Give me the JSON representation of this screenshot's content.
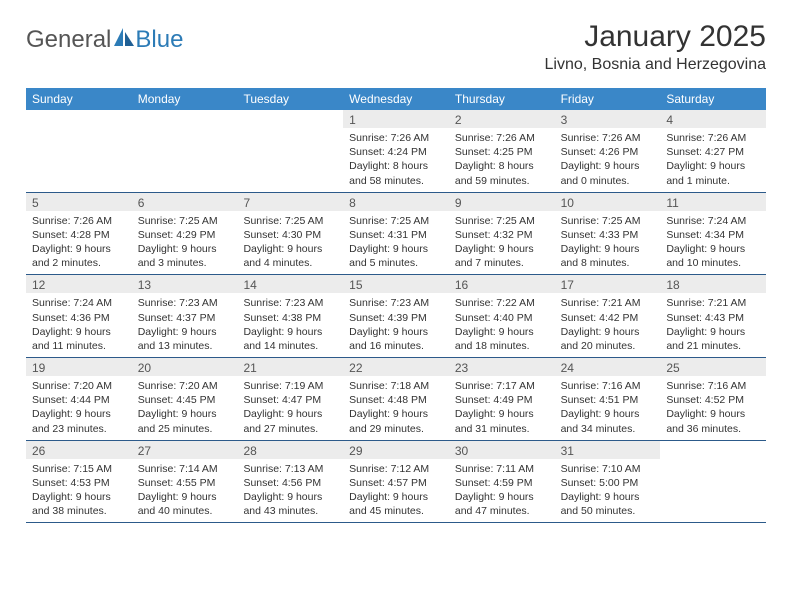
{
  "logo": {
    "text1": "General",
    "text2": "Blue"
  },
  "title": "January 2025",
  "location": "Livno, Bosnia and Herzegovina",
  "colors": {
    "header_bg": "#3a87c8",
    "header_text": "#ffffff",
    "daynum_bg": "#ececec",
    "text": "#333333",
    "rule": "#2c5a8a",
    "logo_blue": "#2c7bb6"
  },
  "day_labels": [
    "Sunday",
    "Monday",
    "Tuesday",
    "Wednesday",
    "Thursday",
    "Friday",
    "Saturday"
  ],
  "weeks": [
    [
      {
        "day": "",
        "lines": []
      },
      {
        "day": "",
        "lines": []
      },
      {
        "day": "",
        "lines": []
      },
      {
        "day": "1",
        "lines": [
          "Sunrise: 7:26 AM",
          "Sunset: 4:24 PM",
          "Daylight: 8 hours",
          "and 58 minutes."
        ]
      },
      {
        "day": "2",
        "lines": [
          "Sunrise: 7:26 AM",
          "Sunset: 4:25 PM",
          "Daylight: 8 hours",
          "and 59 minutes."
        ]
      },
      {
        "day": "3",
        "lines": [
          "Sunrise: 7:26 AM",
          "Sunset: 4:26 PM",
          "Daylight: 9 hours",
          "and 0 minutes."
        ]
      },
      {
        "day": "4",
        "lines": [
          "Sunrise: 7:26 AM",
          "Sunset: 4:27 PM",
          "Daylight: 9 hours",
          "and 1 minute."
        ]
      }
    ],
    [
      {
        "day": "5",
        "lines": [
          "Sunrise: 7:26 AM",
          "Sunset: 4:28 PM",
          "Daylight: 9 hours",
          "and 2 minutes."
        ]
      },
      {
        "day": "6",
        "lines": [
          "Sunrise: 7:25 AM",
          "Sunset: 4:29 PM",
          "Daylight: 9 hours",
          "and 3 minutes."
        ]
      },
      {
        "day": "7",
        "lines": [
          "Sunrise: 7:25 AM",
          "Sunset: 4:30 PM",
          "Daylight: 9 hours",
          "and 4 minutes."
        ]
      },
      {
        "day": "8",
        "lines": [
          "Sunrise: 7:25 AM",
          "Sunset: 4:31 PM",
          "Daylight: 9 hours",
          "and 5 minutes."
        ]
      },
      {
        "day": "9",
        "lines": [
          "Sunrise: 7:25 AM",
          "Sunset: 4:32 PM",
          "Daylight: 9 hours",
          "and 7 minutes."
        ]
      },
      {
        "day": "10",
        "lines": [
          "Sunrise: 7:25 AM",
          "Sunset: 4:33 PM",
          "Daylight: 9 hours",
          "and 8 minutes."
        ]
      },
      {
        "day": "11",
        "lines": [
          "Sunrise: 7:24 AM",
          "Sunset: 4:34 PM",
          "Daylight: 9 hours",
          "and 10 minutes."
        ]
      }
    ],
    [
      {
        "day": "12",
        "lines": [
          "Sunrise: 7:24 AM",
          "Sunset: 4:36 PM",
          "Daylight: 9 hours",
          "and 11 minutes."
        ]
      },
      {
        "day": "13",
        "lines": [
          "Sunrise: 7:23 AM",
          "Sunset: 4:37 PM",
          "Daylight: 9 hours",
          "and 13 minutes."
        ]
      },
      {
        "day": "14",
        "lines": [
          "Sunrise: 7:23 AM",
          "Sunset: 4:38 PM",
          "Daylight: 9 hours",
          "and 14 minutes."
        ]
      },
      {
        "day": "15",
        "lines": [
          "Sunrise: 7:23 AM",
          "Sunset: 4:39 PM",
          "Daylight: 9 hours",
          "and 16 minutes."
        ]
      },
      {
        "day": "16",
        "lines": [
          "Sunrise: 7:22 AM",
          "Sunset: 4:40 PM",
          "Daylight: 9 hours",
          "and 18 minutes."
        ]
      },
      {
        "day": "17",
        "lines": [
          "Sunrise: 7:21 AM",
          "Sunset: 4:42 PM",
          "Daylight: 9 hours",
          "and 20 minutes."
        ]
      },
      {
        "day": "18",
        "lines": [
          "Sunrise: 7:21 AM",
          "Sunset: 4:43 PM",
          "Daylight: 9 hours",
          "and 21 minutes."
        ]
      }
    ],
    [
      {
        "day": "19",
        "lines": [
          "Sunrise: 7:20 AM",
          "Sunset: 4:44 PM",
          "Daylight: 9 hours",
          "and 23 minutes."
        ]
      },
      {
        "day": "20",
        "lines": [
          "Sunrise: 7:20 AM",
          "Sunset: 4:45 PM",
          "Daylight: 9 hours",
          "and 25 minutes."
        ]
      },
      {
        "day": "21",
        "lines": [
          "Sunrise: 7:19 AM",
          "Sunset: 4:47 PM",
          "Daylight: 9 hours",
          "and 27 minutes."
        ]
      },
      {
        "day": "22",
        "lines": [
          "Sunrise: 7:18 AM",
          "Sunset: 4:48 PM",
          "Daylight: 9 hours",
          "and 29 minutes."
        ]
      },
      {
        "day": "23",
        "lines": [
          "Sunrise: 7:17 AM",
          "Sunset: 4:49 PM",
          "Daylight: 9 hours",
          "and 31 minutes."
        ]
      },
      {
        "day": "24",
        "lines": [
          "Sunrise: 7:16 AM",
          "Sunset: 4:51 PM",
          "Daylight: 9 hours",
          "and 34 minutes."
        ]
      },
      {
        "day": "25",
        "lines": [
          "Sunrise: 7:16 AM",
          "Sunset: 4:52 PM",
          "Daylight: 9 hours",
          "and 36 minutes."
        ]
      }
    ],
    [
      {
        "day": "26",
        "lines": [
          "Sunrise: 7:15 AM",
          "Sunset: 4:53 PM",
          "Daylight: 9 hours",
          "and 38 minutes."
        ]
      },
      {
        "day": "27",
        "lines": [
          "Sunrise: 7:14 AM",
          "Sunset: 4:55 PM",
          "Daylight: 9 hours",
          "and 40 minutes."
        ]
      },
      {
        "day": "28",
        "lines": [
          "Sunrise: 7:13 AM",
          "Sunset: 4:56 PM",
          "Daylight: 9 hours",
          "and 43 minutes."
        ]
      },
      {
        "day": "29",
        "lines": [
          "Sunrise: 7:12 AM",
          "Sunset: 4:57 PM",
          "Daylight: 9 hours",
          "and 45 minutes."
        ]
      },
      {
        "day": "30",
        "lines": [
          "Sunrise: 7:11 AM",
          "Sunset: 4:59 PM",
          "Daylight: 9 hours",
          "and 47 minutes."
        ]
      },
      {
        "day": "31",
        "lines": [
          "Sunrise: 7:10 AM",
          "Sunset: 5:00 PM",
          "Daylight: 9 hours",
          "and 50 minutes."
        ]
      },
      {
        "day": "",
        "lines": []
      }
    ]
  ]
}
